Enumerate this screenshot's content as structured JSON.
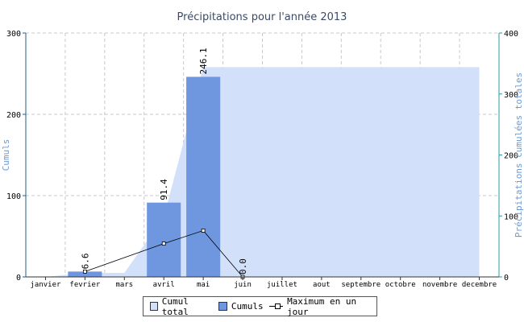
{
  "chart_data": {
    "type": "bar",
    "title": "Précipitations pour l'année 2013",
    "categories": [
      "janvier",
      "fevrier",
      "mars",
      "avril",
      "mai",
      "juin",
      "juillet",
      "aout",
      "septembre",
      "octobre",
      "novembre",
      "decembre"
    ],
    "ylabel": "Cumuls",
    "y2label": "Précipitations cumulées totales",
    "ylim": [
      0,
      300
    ],
    "y2lim": [
      0,
      400
    ],
    "yticks": [
      0,
      100,
      200,
      300
    ],
    "y2ticks": [
      0,
      100,
      200,
      300,
      400
    ],
    "grid": true,
    "legend_position": "bottom",
    "series": [
      {
        "name": "Cumul total",
        "type": "area",
        "axis": "right",
        "values": [
          0,
          6.6,
          6.6,
          98,
          344.1,
          344.1,
          344.1,
          344.1,
          344.1,
          344.1,
          344.1,
          344.1
        ]
      },
      {
        "name": "Cumuls",
        "type": "bar",
        "axis": "left",
        "values": [
          null,
          6.6,
          null,
          91.4,
          246.1,
          0.0,
          null,
          null,
          null,
          null,
          null,
          null
        ],
        "labels": [
          null,
          "6.6",
          null,
          "91.4",
          "246.1",
          "0.0",
          null,
          null,
          null,
          null,
          null,
          null
        ]
      },
      {
        "name": "Maximum en un jour",
        "type": "line",
        "axis": "left",
        "values": [
          null,
          6.6,
          null,
          41,
          57,
          0.0,
          null,
          null,
          null,
          null,
          null,
          null
        ]
      }
    ],
    "colors": {
      "area": "#d3e0fa",
      "bar": "#6e97df",
      "line": "#000000",
      "axis_left": "#1f5f8b",
      "axis_right": "#2a9aa6",
      "axis_label": "#6a9bd8",
      "grid": "#c8c8c8"
    }
  },
  "legend": {
    "total_label": "Cumul total",
    "cumuls_label": "Cumuls",
    "max_label": "Maximum en un jour"
  }
}
